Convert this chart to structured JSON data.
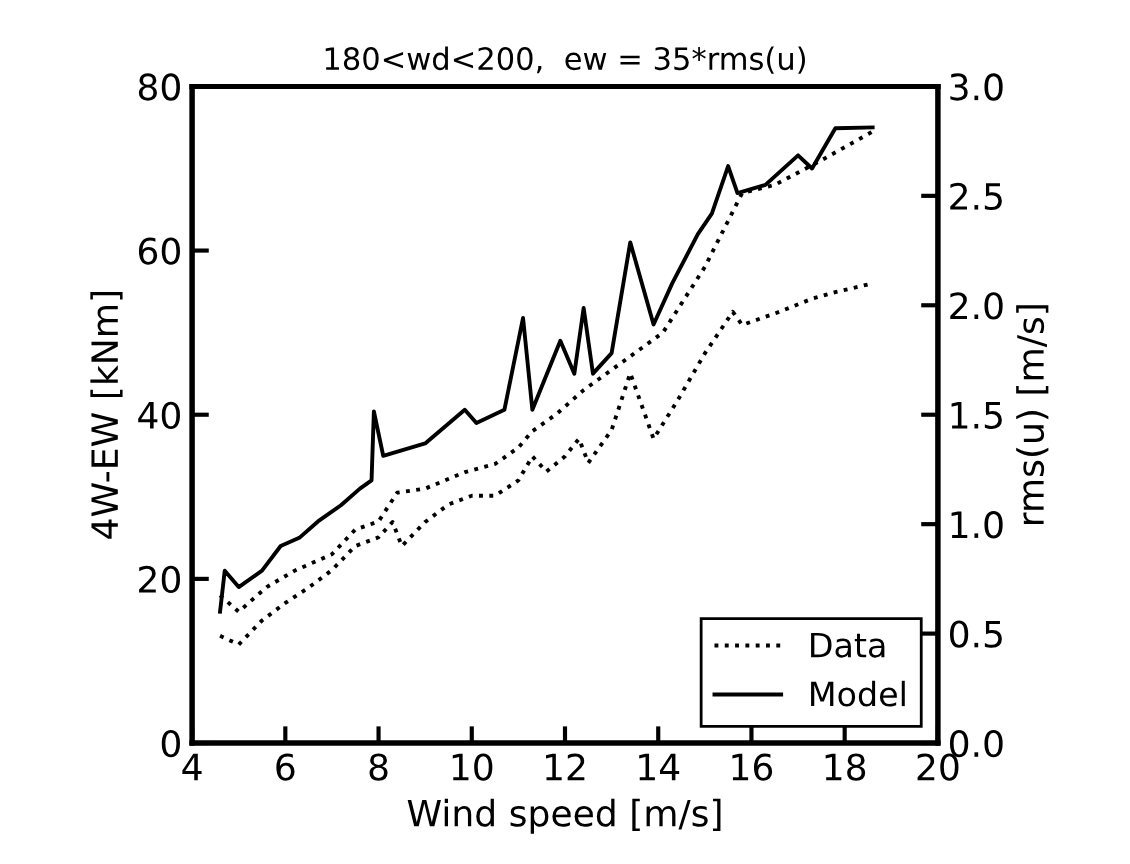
{
  "chart_data": {
    "type": "line",
    "title": "180<wd<200,  ew = 35*rms(u)",
    "xlabel": "Wind speed [m/s]",
    "ylabel": "4W-EW [kNm]",
    "y2label": "rms(u) [m/s]",
    "xlim": [
      4,
      20
    ],
    "xticks": [
      4,
      6,
      8,
      10,
      12,
      14,
      16,
      18,
      20
    ],
    "ylim": [
      0,
      80
    ],
    "yticks": [
      0,
      20,
      40,
      60,
      80
    ],
    "y2lim": [
      0,
      3
    ],
    "y2ticks": [
      {
        "value": 0,
        "label": "0.0"
      },
      0.5,
      {
        "value": 1,
        "label": "1.0"
      },
      1.5,
      {
        "value": 2,
        "label": "2.0"
      },
      2.5,
      {
        "value": 3,
        "label": "3.0"
      }
    ],
    "legend": "bottom right",
    "grid": false,
    "series": [
      {
        "name": "Data",
        "color": "#000000",
        "line_style": "dotted",
        "x": [
          4.6,
          5.0,
          5.6,
          6.2,
          7.0,
          7.5,
          8.0,
          8.4,
          9.0,
          9.85,
          10.5,
          11.0,
          11.3,
          11.8,
          12.4,
          13.3,
          14.1,
          15.0,
          15.8,
          16.5,
          17.5,
          18.6
        ],
        "values": [
          18,
          16,
          19,
          21,
          23,
          26,
          27,
          30.5,
          31,
          33,
          34,
          36,
          38,
          40,
          43,
          46.7,
          50,
          58,
          67,
          68,
          71,
          74.5
        ]
      },
      {
        "name": "Model",
        "color": "#000000",
        "line_style": "solid",
        "x": [
          4.6,
          4.7,
          5.0,
          5.5,
          5.9,
          6.3,
          6.7,
          7.2,
          7.6,
          7.85,
          7.9,
          8.1,
          9.0,
          9.85,
          10.1,
          10.7,
          11.1,
          11.3,
          11.9,
          12.2,
          12.4,
          12.6,
          13.0,
          13.4,
          13.9,
          14.3,
          14.85,
          15.15,
          15.5,
          15.7,
          16.3,
          17.0,
          17.3,
          17.8,
          18.6
        ],
        "values": [
          16,
          21,
          19,
          21,
          24,
          25,
          27,
          29,
          31,
          32,
          40.4,
          35,
          36.5,
          40.6,
          39,
          40.6,
          51.8,
          40.6,
          49,
          45,
          53,
          45,
          47.5,
          61,
          51,
          56,
          62,
          64.5,
          70.3,
          67,
          68,
          71.6,
          70,
          74.9,
          75
        ]
      },
      {
        "color": "#000000",
        "line_style": "dotted",
        "axis": "y2",
        "x": [
          4.6,
          5.0,
          5.5,
          6.0,
          6.5,
          7.0,
          7.5,
          8.0,
          8.3,
          8.5,
          9.0,
          9.5,
          10.0,
          10.5,
          11.0,
          11.3,
          11.6,
          12.0,
          12.3,
          12.5,
          13.0,
          13.4,
          13.9,
          14.4,
          15.0,
          15.6,
          15.8,
          16.6,
          17.3,
          17.8,
          18.6
        ],
        "values": [
          0.49,
          0.45,
          0.56,
          0.64,
          0.71,
          0.79,
          0.9,
          0.94,
          1.01,
          0.9,
          1.01,
          1.09,
          1.13,
          1.13,
          1.2,
          1.31,
          1.24,
          1.31,
          1.39,
          1.28,
          1.43,
          1.69,
          1.39,
          1.56,
          1.78,
          1.97,
          1.91,
          1.97,
          2.03,
          2.06,
          2.1
        ]
      }
    ]
  }
}
